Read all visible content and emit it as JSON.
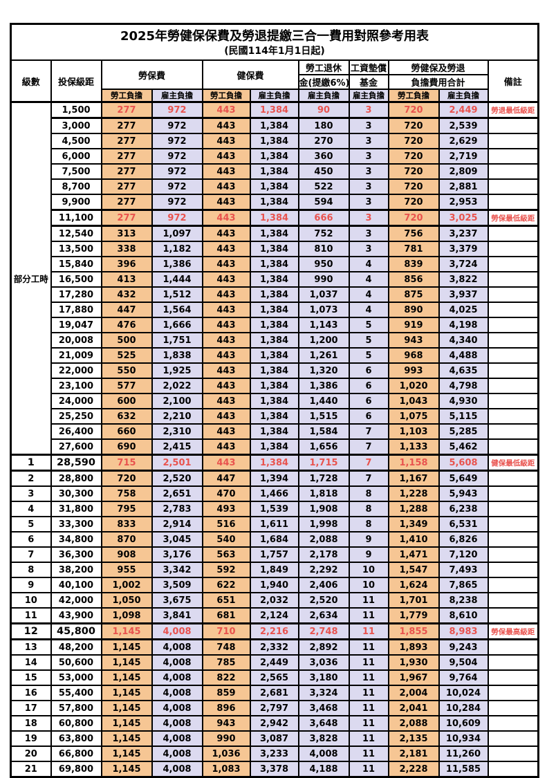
{
  "title": "2025年勞健保保費及勞退提繳三合一費用對照參考用表",
  "subtitle": "(民國114年1月1日起)",
  "header": {
    "level": "級數",
    "bracket": "投保級距",
    "labor_fee": "勞保費",
    "health_fee": "健保費",
    "pension_l1": "勞工退休",
    "pension_l2": "金(提繳6%)",
    "wage_l1": "工資墊償",
    "wage_l2": "基金",
    "total_l1": "勞健保及勞退",
    "total_l2": "負擔費用合計",
    "remark": "備註",
    "employee": "勞工負擔",
    "employer": "雇主負擔"
  },
  "part_time_label": "部分工時",
  "part_time_rowspan": 23,
  "colors": {
    "employee_bg": "#F6C694",
    "employer_bg": "#DCDAF0",
    "highlight_text": "#E9534E",
    "border": "#000000"
  },
  "rows": [
    {
      "level": "",
      "bracket": "1,500",
      "cells": [
        "277",
        "972",
        "443",
        "1,384",
        "90",
        "3",
        "720",
        "2,449"
      ],
      "remark": "勞退最低級距",
      "highlight": true,
      "emph": false
    },
    {
      "level": "",
      "bracket": "3,000",
      "cells": [
        "277",
        "972",
        "443",
        "1,384",
        "180",
        "3",
        "720",
        "2,539"
      ],
      "remark": "",
      "highlight": false,
      "emph": false
    },
    {
      "level": "",
      "bracket": "4,500",
      "cells": [
        "277",
        "972",
        "443",
        "1,384",
        "270",
        "3",
        "720",
        "2,629"
      ],
      "remark": "",
      "highlight": false,
      "emph": false
    },
    {
      "level": "",
      "bracket": "6,000",
      "cells": [
        "277",
        "972",
        "443",
        "1,384",
        "360",
        "3",
        "720",
        "2,719"
      ],
      "remark": "",
      "highlight": false,
      "emph": false
    },
    {
      "level": "",
      "bracket": "7,500",
      "cells": [
        "277",
        "972",
        "443",
        "1,384",
        "450",
        "3",
        "720",
        "2,809"
      ],
      "remark": "",
      "highlight": false,
      "emph": false
    },
    {
      "level": "",
      "bracket": "8,700",
      "cells": [
        "277",
        "972",
        "443",
        "1,384",
        "522",
        "3",
        "720",
        "2,881"
      ],
      "remark": "",
      "highlight": false,
      "emph": false
    },
    {
      "level": "",
      "bracket": "9,900",
      "cells": [
        "277",
        "972",
        "443",
        "1,384",
        "594",
        "3",
        "720",
        "2,953"
      ],
      "remark": "",
      "highlight": false,
      "emph": false
    },
    {
      "level": "",
      "bracket": "11,100",
      "cells": [
        "277",
        "972",
        "443",
        "1,384",
        "666",
        "3",
        "720",
        "3,025"
      ],
      "remark": "勞保最低級距",
      "highlight": true,
      "emph": false
    },
    {
      "level": "",
      "bracket": "12,540",
      "cells": [
        "313",
        "1,097",
        "443",
        "1,384",
        "752",
        "3",
        "756",
        "3,237"
      ],
      "remark": "",
      "highlight": false,
      "emph": false
    },
    {
      "level": "",
      "bracket": "13,500",
      "cells": [
        "338",
        "1,182",
        "443",
        "1,384",
        "810",
        "3",
        "781",
        "3,379"
      ],
      "remark": "",
      "highlight": false,
      "emph": false
    },
    {
      "level": "",
      "bracket": "15,840",
      "cells": [
        "396",
        "1,386",
        "443",
        "1,384",
        "950",
        "4",
        "839",
        "3,724"
      ],
      "remark": "",
      "highlight": false,
      "emph": false
    },
    {
      "level": "",
      "bracket": "16,500",
      "cells": [
        "413",
        "1,444",
        "443",
        "1,384",
        "990",
        "4",
        "856",
        "3,822"
      ],
      "remark": "",
      "highlight": false,
      "emph": false
    },
    {
      "level": "",
      "bracket": "17,280",
      "cells": [
        "432",
        "1,512",
        "443",
        "1,384",
        "1,037",
        "4",
        "875",
        "3,937"
      ],
      "remark": "",
      "highlight": false,
      "emph": false
    },
    {
      "level": "",
      "bracket": "17,880",
      "cells": [
        "447",
        "1,564",
        "443",
        "1,384",
        "1,073",
        "4",
        "890",
        "4,025"
      ],
      "remark": "",
      "highlight": false,
      "emph": false
    },
    {
      "level": "",
      "bracket": "19,047",
      "cells": [
        "476",
        "1,666",
        "443",
        "1,384",
        "1,143",
        "5",
        "919",
        "4,198"
      ],
      "remark": "",
      "highlight": false,
      "emph": false
    },
    {
      "level": "",
      "bracket": "20,008",
      "cells": [
        "500",
        "1,751",
        "443",
        "1,384",
        "1,200",
        "5",
        "943",
        "4,340"
      ],
      "remark": "",
      "highlight": false,
      "emph": false
    },
    {
      "level": "",
      "bracket": "21,009",
      "cells": [
        "525",
        "1,838",
        "443",
        "1,384",
        "1,261",
        "5",
        "968",
        "4,488"
      ],
      "remark": "",
      "highlight": false,
      "emph": false
    },
    {
      "level": "",
      "bracket": "22,000",
      "cells": [
        "550",
        "1,925",
        "443",
        "1,384",
        "1,320",
        "6",
        "993",
        "4,635"
      ],
      "remark": "",
      "highlight": false,
      "emph": false
    },
    {
      "level": "",
      "bracket": "23,100",
      "cells": [
        "577",
        "2,022",
        "443",
        "1,384",
        "1,386",
        "6",
        "1,020",
        "4,798"
      ],
      "remark": "",
      "highlight": false,
      "emph": false
    },
    {
      "level": "",
      "bracket": "24,000",
      "cells": [
        "600",
        "2,100",
        "443",
        "1,384",
        "1,440",
        "6",
        "1,043",
        "4,930"
      ],
      "remark": "",
      "highlight": false,
      "emph": false
    },
    {
      "level": "",
      "bracket": "25,250",
      "cells": [
        "632",
        "2,210",
        "443",
        "1,384",
        "1,515",
        "6",
        "1,075",
        "5,115"
      ],
      "remark": "",
      "highlight": false,
      "emph": false
    },
    {
      "level": "",
      "bracket": "26,400",
      "cells": [
        "660",
        "2,310",
        "443",
        "1,384",
        "1,584",
        "7",
        "1,103",
        "5,285"
      ],
      "remark": "",
      "highlight": false,
      "emph": false
    },
    {
      "level": "",
      "bracket": "27,600",
      "cells": [
        "690",
        "2,415",
        "443",
        "1,384",
        "1,656",
        "7",
        "1,133",
        "5,462"
      ],
      "remark": "",
      "highlight": false,
      "emph": false
    },
    {
      "level": "1",
      "bracket": "28,590",
      "cells": [
        "715",
        "2,501",
        "443",
        "1,384",
        "1,715",
        "7",
        "1,158",
        "5,608"
      ],
      "remark": "健保最低級距",
      "highlight": true,
      "emph": true
    },
    {
      "level": "2",
      "bracket": "28,800",
      "cells": [
        "720",
        "2,520",
        "447",
        "1,394",
        "1,728",
        "7",
        "1,167",
        "5,649"
      ],
      "remark": "",
      "highlight": false,
      "emph": false
    },
    {
      "level": "3",
      "bracket": "30,300",
      "cells": [
        "758",
        "2,651",
        "470",
        "1,466",
        "1,818",
        "8",
        "1,228",
        "5,943"
      ],
      "remark": "",
      "highlight": false,
      "emph": false
    },
    {
      "level": "4",
      "bracket": "31,800",
      "cells": [
        "795",
        "2,783",
        "493",
        "1,539",
        "1,908",
        "8",
        "1,288",
        "6,238"
      ],
      "remark": "",
      "highlight": false,
      "emph": false
    },
    {
      "level": "5",
      "bracket": "33,300",
      "cells": [
        "833",
        "2,914",
        "516",
        "1,611",
        "1,998",
        "8",
        "1,349",
        "6,531"
      ],
      "remark": "",
      "highlight": false,
      "emph": false
    },
    {
      "level": "6",
      "bracket": "34,800",
      "cells": [
        "870",
        "3,045",
        "540",
        "1,684",
        "2,088",
        "9",
        "1,410",
        "6,826"
      ],
      "remark": "",
      "highlight": false,
      "emph": false
    },
    {
      "level": "7",
      "bracket": "36,300",
      "cells": [
        "908",
        "3,176",
        "563",
        "1,757",
        "2,178",
        "9",
        "1,471",
        "7,120"
      ],
      "remark": "",
      "highlight": false,
      "emph": false
    },
    {
      "level": "8",
      "bracket": "38,200",
      "cells": [
        "955",
        "3,342",
        "592",
        "1,849",
        "2,292",
        "10",
        "1,547",
        "7,493"
      ],
      "remark": "",
      "highlight": false,
      "emph": false
    },
    {
      "level": "9",
      "bracket": "40,100",
      "cells": [
        "1,002",
        "3,509",
        "622",
        "1,940",
        "2,406",
        "10",
        "1,624",
        "7,865"
      ],
      "remark": "",
      "highlight": false,
      "emph": false
    },
    {
      "level": "10",
      "bracket": "42,000",
      "cells": [
        "1,050",
        "3,675",
        "651",
        "2,032",
        "2,520",
        "11",
        "1,701",
        "8,238"
      ],
      "remark": "",
      "highlight": false,
      "emph": false
    },
    {
      "level": "11",
      "bracket": "43,900",
      "cells": [
        "1,098",
        "3,841",
        "681",
        "2,124",
        "2,634",
        "11",
        "1,779",
        "8,610"
      ],
      "remark": "",
      "highlight": false,
      "emph": false
    },
    {
      "level": "12",
      "bracket": "45,800",
      "cells": [
        "1,145",
        "4,008",
        "710",
        "2,216",
        "2,748",
        "11",
        "1,855",
        "8,983"
      ],
      "remark": "勞保最高級距",
      "highlight": true,
      "emph": true
    },
    {
      "level": "13",
      "bracket": "48,200",
      "cells": [
        "1,145",
        "4,008",
        "748",
        "2,332",
        "2,892",
        "11",
        "1,893",
        "9,243"
      ],
      "remark": "",
      "highlight": false,
      "emph": false
    },
    {
      "level": "14",
      "bracket": "50,600",
      "cells": [
        "1,145",
        "4,008",
        "785",
        "2,449",
        "3,036",
        "11",
        "1,930",
        "9,504"
      ],
      "remark": "",
      "highlight": false,
      "emph": false
    },
    {
      "level": "15",
      "bracket": "53,000",
      "cells": [
        "1,145",
        "4,008",
        "822",
        "2,565",
        "3,180",
        "11",
        "1,967",
        "9,764"
      ],
      "remark": "",
      "highlight": false,
      "emph": false
    },
    {
      "level": "16",
      "bracket": "55,400",
      "cells": [
        "1,145",
        "4,008",
        "859",
        "2,681",
        "3,324",
        "11",
        "2,004",
        "10,024"
      ],
      "remark": "",
      "highlight": false,
      "emph": false
    },
    {
      "level": "17",
      "bracket": "57,800",
      "cells": [
        "1,145",
        "4,008",
        "896",
        "2,797",
        "3,468",
        "11",
        "2,041",
        "10,284"
      ],
      "remark": "",
      "highlight": false,
      "emph": false
    },
    {
      "level": "18",
      "bracket": "60,800",
      "cells": [
        "1,145",
        "4,008",
        "943",
        "2,942",
        "3,648",
        "11",
        "2,088",
        "10,609"
      ],
      "remark": "",
      "highlight": false,
      "emph": false
    },
    {
      "level": "19",
      "bracket": "63,800",
      "cells": [
        "1,145",
        "4,008",
        "990",
        "3,087",
        "3,828",
        "11",
        "2,135",
        "10,934"
      ],
      "remark": "",
      "highlight": false,
      "emph": false
    },
    {
      "level": "20",
      "bracket": "66,800",
      "cells": [
        "1,145",
        "4,008",
        "1,036",
        "3,233",
        "4,008",
        "11",
        "2,181",
        "11,260"
      ],
      "remark": "",
      "highlight": false,
      "emph": false
    },
    {
      "level": "21",
      "bracket": "69,800",
      "cells": [
        "1,145",
        "4,008",
        "1,083",
        "3,378",
        "4,188",
        "11",
        "2,228",
        "11,585"
      ],
      "remark": "",
      "highlight": false,
      "emph": false
    }
  ]
}
